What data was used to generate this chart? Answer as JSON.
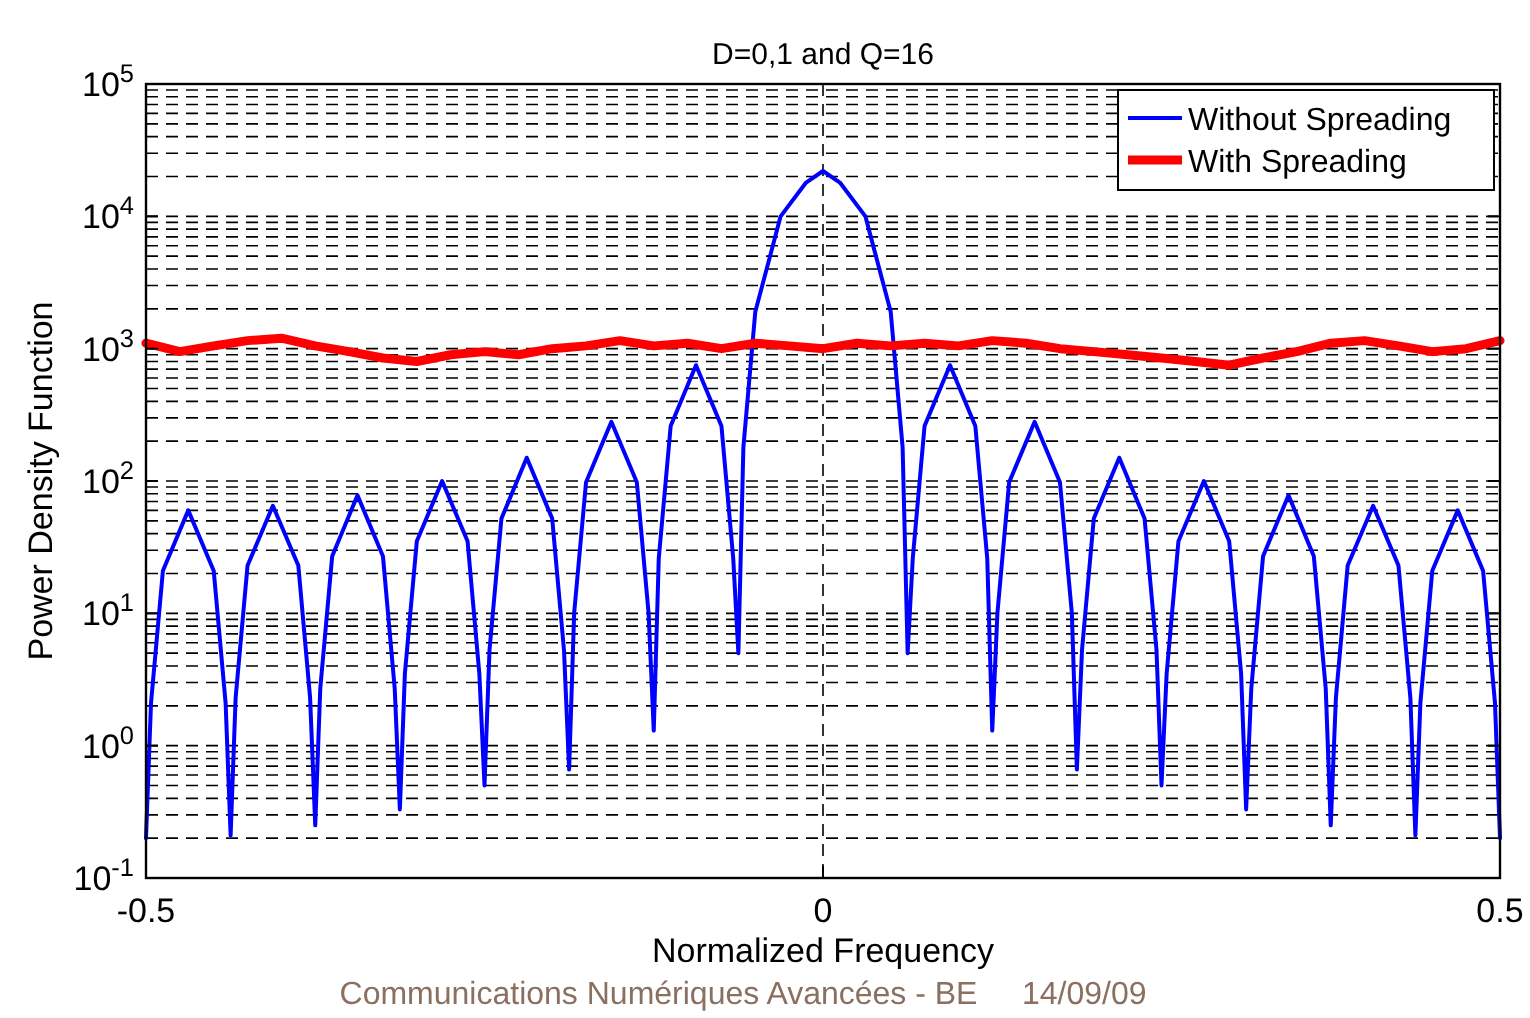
{
  "chart_data": {
    "type": "line",
    "title": "D=0,1 and Q=16",
    "xlabel": "Normalized Frequency",
    "ylabel": "Power Density Function",
    "annotations": [
      "Communications Numériques Avancées - BE     14/09/09"
    ],
    "log": "y",
    "grid": true,
    "legend": "top right",
    "xlim": [
      -0.5,
      0.5
    ],
    "xticks": [
      -0.5,
      0,
      0.5
    ],
    "ylim": [
      0.1,
      100000
    ],
    "yticks": [
      {
        "value": 0.1,
        "label": "10$^{-1}$"
      },
      {
        "value": 1,
        "label": "10$^{0}$"
      },
      {
        "value": 10,
        "label": "10$^{1}$"
      },
      {
        "value": 100,
        "label": "10$^{2}$"
      },
      {
        "value": 1000,
        "label": "10$^{3}$"
      },
      {
        "value": 10000,
        "label": "10$^{4}$"
      },
      {
        "value": 100000,
        "label": "10$^{5}$"
      }
    ],
    "series": [
      {
        "name": "Without Spreading",
        "color": "#0000ff",
        "x": [
          -0.5,
          -0.4963,
          -0.4875,
          -0.4688,
          -0.45,
          -0.4412,
          -0.4375,
          -0.4338,
          -0.425,
          -0.4063,
          -0.3875,
          -0.3788,
          -0.375,
          -0.3713,
          -0.3625,
          -0.3438,
          -0.325,
          -0.3163,
          -0.3125,
          -0.3088,
          -0.3,
          -0.2813,
          -0.2625,
          -0.2538,
          -0.25,
          -0.2463,
          -0.2375,
          -0.2188,
          -0.2,
          -0.1913,
          -0.1875,
          -0.1838,
          -0.175,
          -0.1563,
          -0.1375,
          -0.1288,
          -0.125,
          -0.1213,
          -0.1125,
          -0.0938,
          -0.075,
          -0.0663,
          -0.0625,
          -0.0588,
          -0.05,
          -0.0313,
          -0.0125,
          0,
          0.0125,
          0.0313,
          0.05,
          0.0588,
          0.0625,
          0.0663,
          0.075,
          0.0938,
          0.1125,
          0.1213,
          0.125,
          0.1288,
          0.1375,
          0.1563,
          0.175,
          0.1838,
          0.1875,
          0.1913,
          0.2,
          0.2188,
          0.2375,
          0.2463,
          0.25,
          0.2538,
          0.2625,
          0.2813,
          0.3,
          0.3088,
          0.3125,
          0.3163,
          0.325,
          0.3438,
          0.3625,
          0.3713,
          0.375,
          0.3788,
          0.3875,
          0.4063,
          0.425,
          0.4338,
          0.4375,
          0.4412,
          0.45,
          0.4688,
          0.4875,
          0.4963,
          0.5
        ],
        "values": [
          0.2,
          2.1,
          21,
          60,
          21,
          2.1,
          0.21,
          2.3,
          23,
          65,
          23,
          2.3,
          0.25,
          2.7,
          27,
          78,
          27,
          2.7,
          0.33,
          3.5,
          35,
          100,
          35,
          3.5,
          0.5,
          5.3,
          52,
          150,
          52,
          5.3,
          0.66,
          10,
          98,
          280,
          98,
          10,
          1.3,
          26,
          260,
          750,
          260,
          26,
          5,
          180,
          1900,
          10000,
          18000,
          22000,
          18000,
          10000,
          1900,
          180,
          5,
          26,
          260,
          750,
          260,
          26,
          1.3,
          10,
          98,
          280,
          98,
          10,
          0.66,
          5.3,
          52,
          150,
          52,
          5.3,
          0.5,
          3.5,
          35,
          100,
          35,
          3.5,
          0.33,
          2.7,
          27,
          78,
          27,
          2.7,
          0.25,
          2.3,
          23,
          65,
          23,
          2.3,
          0.21,
          2.1,
          21,
          60,
          21,
          2.1,
          0.2
        ]
      },
      {
        "name": "With Spreading",
        "color": "#ff0000",
        "x": [
          -0.5,
          -0.475,
          -0.45,
          -0.425,
          -0.4,
          -0.375,
          -0.35,
          -0.325,
          -0.3,
          -0.275,
          -0.25,
          -0.225,
          -0.2,
          -0.175,
          -0.15,
          -0.125,
          -0.1,
          -0.075,
          -0.05,
          -0.025,
          0,
          0.025,
          0.05,
          0.075,
          0.1,
          0.125,
          0.15,
          0.175,
          0.2,
          0.225,
          0.25,
          0.275,
          0.3,
          0.325,
          0.35,
          0.375,
          0.4,
          0.425,
          0.45,
          0.475,
          0.5
        ],
        "values": [
          1100,
          950,
          1050,
          1150,
          1200,
          1050,
          950,
          850,
          800,
          900,
          950,
          900,
          1000,
          1050,
          1150,
          1050,
          1100,
          1000,
          1100,
          1050,
          1000,
          1100,
          1050,
          1100,
          1050,
          1150,
          1100,
          1000,
          950,
          900,
          850,
          800,
          750,
          850,
          950,
          1100,
          1150,
          1050,
          950,
          1000,
          1150
        ]
      }
    ]
  }
}
